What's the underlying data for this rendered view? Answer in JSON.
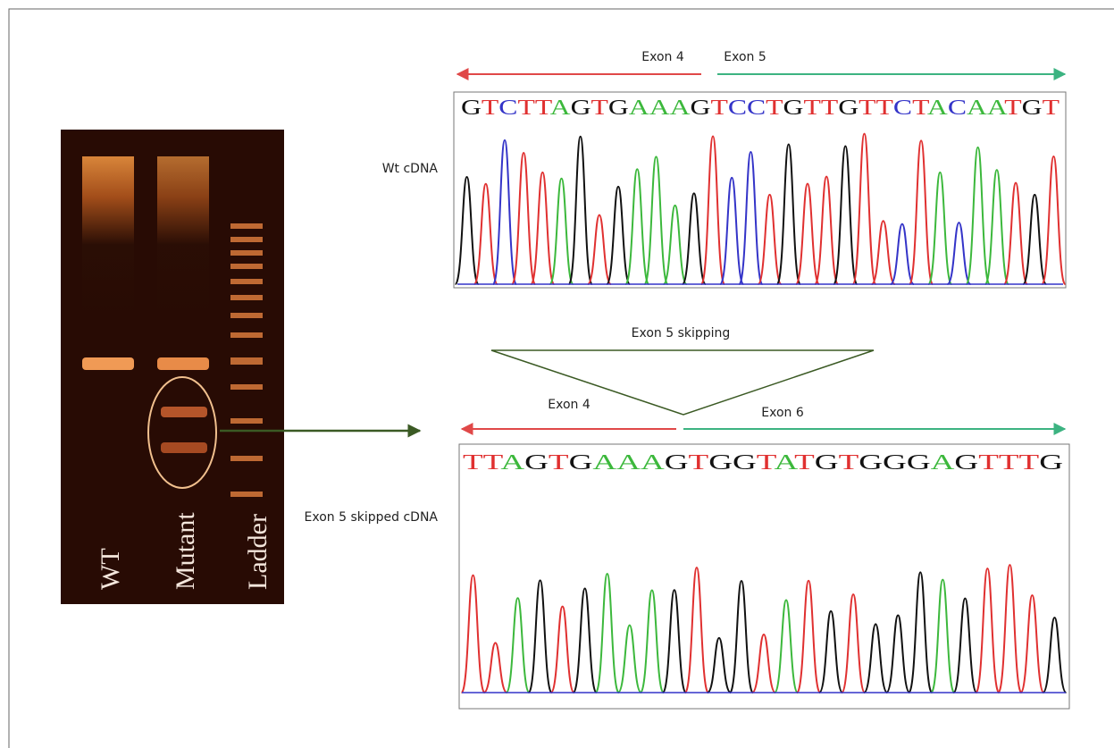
{
  "top_panel": {
    "exon_left": "Exon 4",
    "exon_right": "Exon 5",
    "label": "Wt cDNA",
    "sequence": "GTCTTAGTGAAAGTCCTGTTGTTCTACAATGT"
  },
  "skipping_label": "Exon 5 skipping",
  "bottom_panel": {
    "exon_left": "Exon 4",
    "exon_right": "Exon 6",
    "label": "Exon 5 skipped cDNA",
    "sequence": "TTAGTGAAAGTGGTATGTGGGAGTTTG"
  },
  "gel": {
    "lanes": [
      "WT",
      "Mutant",
      "Ladder"
    ]
  }
}
